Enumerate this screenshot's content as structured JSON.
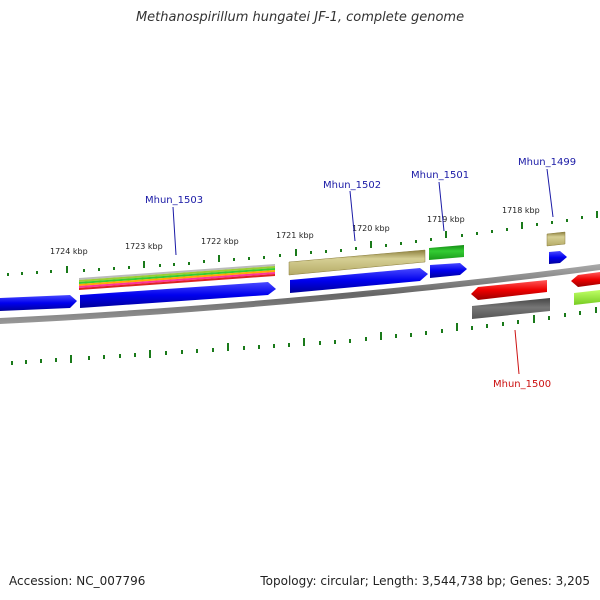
{
  "title": "Methanospirillum hungatei JF-1, complete genome",
  "footer": {
    "accession": "Accession: NC_007796",
    "stats": "Topology: circular; Length: 3,544,738 bp; Genes: 3,205"
  },
  "ticks": [
    "1724 kbp",
    "1723 kbp",
    "1722 kbp",
    "1721 kbp",
    "1720 kbp",
    "1719 kbp",
    "1718 kbp"
  ],
  "genes": [
    {
      "name": "Mhun_1503",
      "strand": "forward"
    },
    {
      "name": "Mhun_1502",
      "strand": "forward"
    },
    {
      "name": "Mhun_1501",
      "strand": "forward"
    },
    {
      "name": "Mhun_1499",
      "strand": "forward"
    },
    {
      "name": "Mhun_1500",
      "strand": "reverse"
    }
  ],
  "colors": {
    "forward_cds": "#0000ee",
    "reverse_cds": "#ee0000",
    "label_forward": "#1a1aa6",
    "label_reverse": "#cc1111",
    "tick": "#1a7a1a",
    "backbone": "#777777",
    "khaki": "#c8bf7a",
    "green": "#22bb22",
    "gray": "#666666",
    "lime": "#99ee33"
  }
}
